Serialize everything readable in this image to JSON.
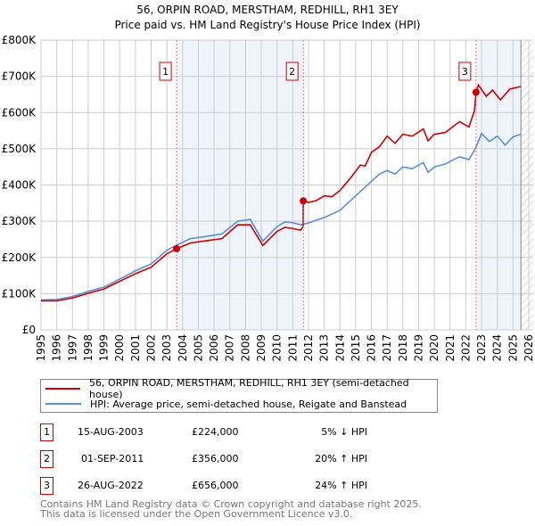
{
  "chart_data": {
    "type": "line",
    "title": "56, ORPIN ROAD, MERSTHAM, REDHILL, RH1 3EY",
    "subtitle": "Price paid vs. HM Land Registry's House Price Index (HPI)",
    "xlim": [
      1995,
      2026
    ],
    "ylim": [
      0,
      800000
    ],
    "yticks": [
      0,
      100000,
      200000,
      300000,
      400000,
      500000,
      600000,
      700000,
      800000
    ],
    "ytick_labels": [
      "£0",
      "£100K",
      "£200K",
      "£300K",
      "£400K",
      "£500K",
      "£600K",
      "£700K",
      "£800K"
    ],
    "xticks": [
      1995,
      1996,
      1997,
      1998,
      1999,
      2000,
      2001,
      2002,
      2003,
      2004,
      2005,
      2006,
      2007,
      2008,
      2009,
      2010,
      2011,
      2012,
      2013,
      2014,
      2015,
      2016,
      2017,
      2018,
      2019,
      2020,
      2021,
      2022,
      2023,
      2024,
      2025,
      2026
    ],
    "grid": true,
    "projection_start": 2025.5,
    "series": [
      {
        "name": "56, ORPIN ROAD, MERSTHAM, REDHILL, RH1 3EY (semi-detached house)",
        "color": "#cc0000",
        "x": [
          1995,
          1996,
          1997,
          1998,
          1999,
          2000,
          2001,
          2002,
          2003,
          2003.62,
          2004.5,
          2005.5,
          2006.5,
          2007.5,
          2008.3,
          2009.1,
          2010,
          2010.5,
          2011,
          2011.5,
          2011.66,
          2011.67,
          2012,
          2012.5,
          2013,
          2013.5,
          2014,
          2014.5,
          2015.3,
          2015.6,
          2016,
          2016.5,
          2017,
          2017.5,
          2018,
          2018.6,
          2019.3,
          2019.6,
          2020,
          2020.7,
          2021,
          2021.6,
          2022.2,
          2022.55,
          2022.65,
          2022.8,
          2023.3,
          2023.7,
          2024.2,
          2024.8,
          2025.5
        ],
        "y": [
          80000,
          80000,
          88000,
          101000,
          113000,
          134000,
          155000,
          173000,
          210000,
          224000,
          240000,
          246000,
          252000,
          290000,
          290000,
          233000,
          272000,
          283000,
          280000,
          275000,
          285000,
          356000,
          352000,
          357000,
          370000,
          368000,
          385000,
          410000,
          455000,
          452000,
          490000,
          505000,
          535000,
          515000,
          540000,
          535000,
          555000,
          522000,
          540000,
          545000,
          555000,
          575000,
          560000,
          605000,
          656000,
          676000,
          645000,
          662000,
          635000,
          665000,
          672000
        ]
      },
      {
        "name": "HPI: Average price, semi-detached house, Reigate and Banstead",
        "color": "#5b8fd4",
        "x": [
          1995,
          1996,
          1997,
          1998,
          1999,
          2000,
          2001,
          2002,
          2003,
          2003.62,
          2004.5,
          2005.5,
          2006.5,
          2007.5,
          2008.3,
          2009.1,
          2010,
          2010.5,
          2011,
          2011.5,
          2012,
          2013,
          2014,
          2014.5,
          2015.3,
          2016,
          2016.5,
          2017,
          2017.5,
          2018,
          2018.6,
          2019.3,
          2019.6,
          2020,
          2020.7,
          2021,
          2021.6,
          2022.2,
          2022.6,
          2023,
          2023.5,
          2024,
          2024.5,
          2025,
          2025.5
        ],
        "y": [
          83000,
          84000,
          92000,
          106000,
          118000,
          140000,
          163000,
          182000,
          220000,
          234000,
          252000,
          258000,
          265000,
          300000,
          305000,
          245000,
          285000,
          298000,
          296000,
          290000,
          295000,
          310000,
          330000,
          350000,
          382000,
          410000,
          430000,
          440000,
          430000,
          450000,
          445000,
          462000,
          435000,
          450000,
          458000,
          465000,
          478000,
          470000,
          500000,
          542000,
          520000,
          535000,
          510000,
          533000,
          540000
        ]
      }
    ],
    "sales": [
      {
        "label": "1",
        "date": "15-AUG-2003",
        "x": 2003.62,
        "price": "£224,000",
        "value": 224000,
        "hpi": "5% ↓ HPI"
      },
      {
        "label": "2",
        "date": "01-SEP-2011",
        "x": 2011.67,
        "price": "£356,000",
        "value": 356000,
        "hpi": "20% ↑ HPI"
      },
      {
        "label": "3",
        "date": "26-AUG-2022",
        "x": 2022.65,
        "price": "£656,000",
        "value": 656000,
        "hpi": "24% ↑ HPI"
      }
    ]
  },
  "footer": {
    "line1": "Contains HM Land Registry data © Crown copyright and database right 2025.",
    "line2": "This data is licensed under the Open Government Licence v3.0."
  }
}
